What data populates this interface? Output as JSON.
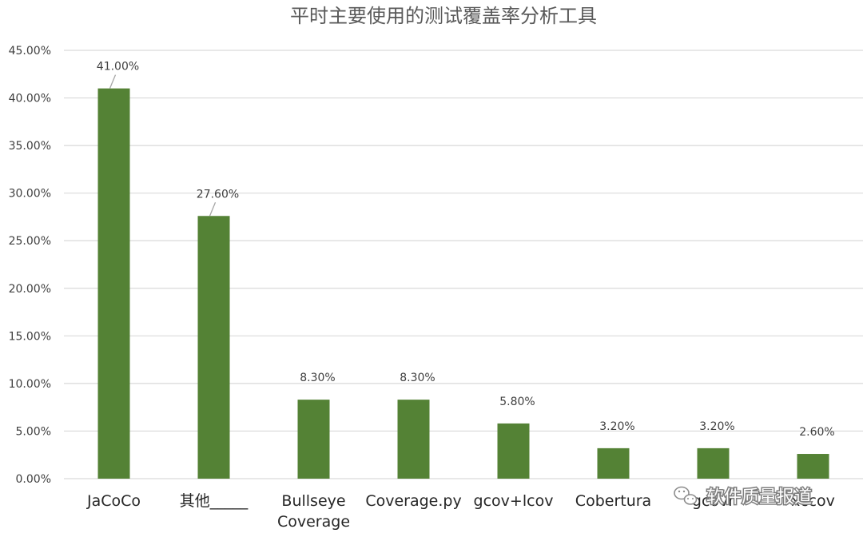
{
  "chart_data": {
    "type": "bar",
    "title": "平时主要使用的测试覆盖率分析工具",
    "xlabel": "",
    "ylabel": "",
    "categories": [
      "JaCoCo",
      "其他_____",
      "Bullseye Coverage",
      "Coverage.py",
      "gcov+lcov",
      "Cobertura",
      "gcovr",
      "xccov"
    ],
    "category_lines": [
      [
        "JaCoCo"
      ],
      [
        "其他_____"
      ],
      [
        "Bullseye",
        "Coverage"
      ],
      [
        "Coverage.py"
      ],
      [
        "gcov+lcov"
      ],
      [
        "Cobertura"
      ],
      [
        "gcovr"
      ],
      [
        "xccov"
      ]
    ],
    "values": [
      41.0,
      27.6,
      8.3,
      8.3,
      5.8,
      3.2,
      3.2,
      2.6
    ],
    "data_labels": [
      "41.00%",
      "27.60%",
      "8.30%",
      "8.30%",
      "5.80%",
      "3.20%",
      "3.20%",
      "2.60%"
    ],
    "ylim": [
      0,
      45
    ],
    "yticks": [
      0,
      5,
      10,
      15,
      20,
      25,
      30,
      35,
      40,
      45
    ],
    "ytick_labels": [
      "0.00%",
      "5.00%",
      "10.00%",
      "15.00%",
      "20.00%",
      "25.00%",
      "30.00%",
      "35.00%",
      "40.00%",
      "45.00%"
    ],
    "grid": true,
    "legend": "none",
    "bar_color": "#548235",
    "grid_color": "#d9d9d9"
  },
  "watermark": {
    "text": "软件质量报道",
    "icon": "wechat-icon"
  }
}
